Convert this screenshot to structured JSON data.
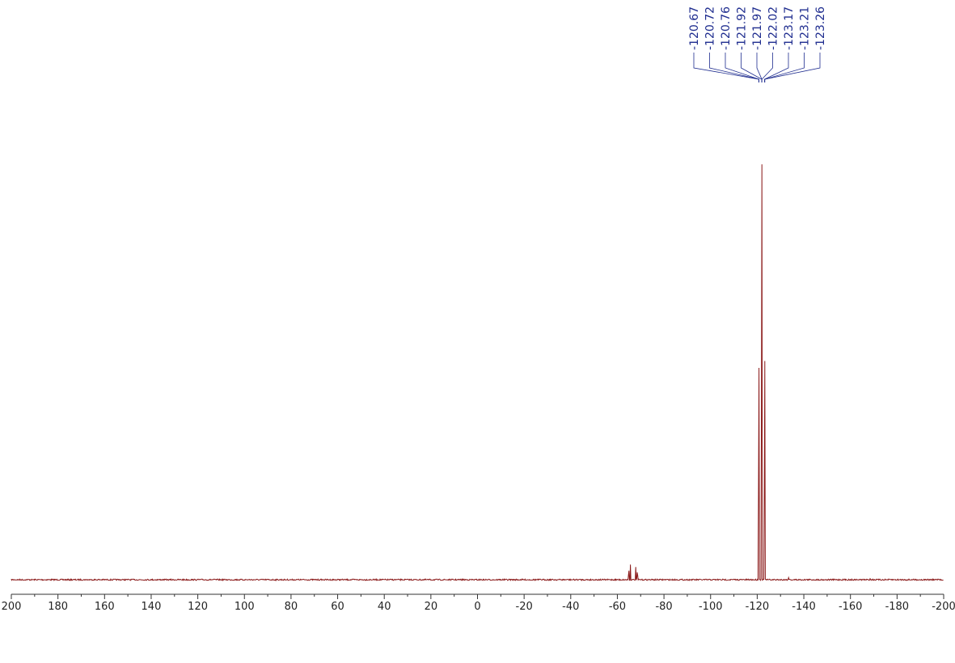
{
  "chart_data": {
    "type": "line",
    "title": "",
    "xlabel": "",
    "ylabel": "",
    "x_reversed": true,
    "xlim": [
      200,
      -200
    ],
    "ylim": [
      0,
      1
    ],
    "grid": false,
    "x_ticks": [
      200,
      180,
      160,
      140,
      120,
      100,
      80,
      60,
      40,
      20,
      0,
      -20,
      -40,
      -60,
      -80,
      -100,
      -120,
      -140,
      -160,
      -180,
      -200
    ],
    "x_tick_labels": [
      "200",
      "180",
      "160",
      "140",
      "120",
      "100",
      "80",
      "60",
      "40",
      "20",
      "0",
      "-20",
      "-40",
      "-60",
      "-80",
      "-100",
      "-120",
      "-140",
      "-160",
      "-180",
      "-200"
    ],
    "peak_labels": [
      "-120.67",
      "-120.72",
      "-120.76",
      "-121.92",
      "-121.97",
      "-122.02",
      "-123.17",
      "-123.21",
      "-123.26"
    ],
    "peaks": [
      {
        "x": -120.67,
        "y": 0.49
      },
      {
        "x": -120.72,
        "y": 0.5
      },
      {
        "x": -120.76,
        "y": 0.49
      },
      {
        "x": -121.92,
        "y": 0.985
      },
      {
        "x": -121.97,
        "y": 1.0
      },
      {
        "x": -122.02,
        "y": 0.985
      },
      {
        "x": -123.17,
        "y": 0.5
      },
      {
        "x": -123.21,
        "y": 0.51
      },
      {
        "x": -123.26,
        "y": 0.5
      },
      {
        "x": -64.9,
        "y": 0.035
      },
      {
        "x": -65.6,
        "y": 0.035
      },
      {
        "x": -67.9,
        "y": 0.03
      },
      {
        "x": -68.6,
        "y": 0.03
      },
      {
        "x": -133.5,
        "y": 0.006
      },
      {
        "x": -168.5,
        "y": 0.004
      }
    ],
    "series_color": "#8b1a1a",
    "label_color": "#1f2d8f"
  }
}
